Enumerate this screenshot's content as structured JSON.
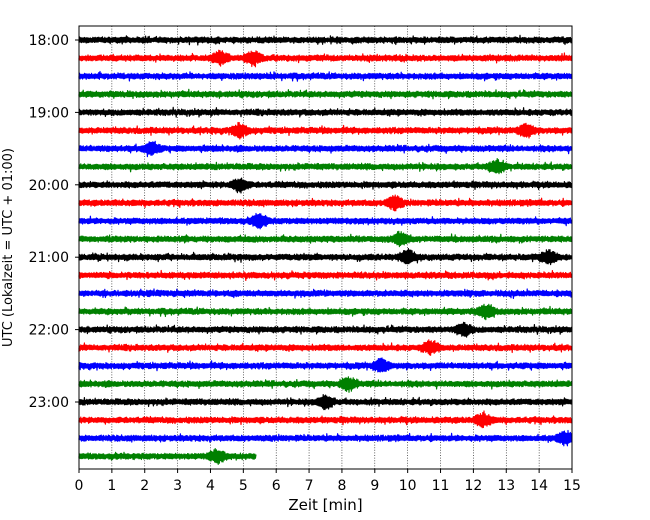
{
  "chart_data": {
    "type": "line",
    "title": "",
    "xlabel": "Zeit  [min]",
    "ylabel": "UTC (Lokalzeit = UTC + 01:00)",
    "xlim": [
      0,
      15
    ],
    "x_ticks": [
      0,
      1,
      2,
      3,
      4,
      5,
      6,
      7,
      8,
      9,
      10,
      11,
      12,
      13,
      14,
      15
    ],
    "y_ticks": [
      "18:00",
      "19:00",
      "20:00",
      "21:00",
      "22:00",
      "23:00"
    ],
    "grid": "vertical dotted lines at each minute",
    "colors": [
      "#000000",
      "#ff0000",
      "#0000ff",
      "#008000"
    ],
    "traces": [
      {
        "start": "18:00",
        "color": "#000000",
        "x_end": 15,
        "events": []
      },
      {
        "start": "18:15",
        "color": "#ff0000",
        "x_end": 15,
        "events": [
          4.3,
          5.3
        ]
      },
      {
        "start": "18:30",
        "color": "#0000ff",
        "x_end": 15,
        "events": []
      },
      {
        "start": "18:45",
        "color": "#008000",
        "x_end": 15,
        "events": []
      },
      {
        "start": "19:00",
        "color": "#000000",
        "x_end": 15,
        "events": []
      },
      {
        "start": "19:15",
        "color": "#ff0000",
        "x_end": 15,
        "events": [
          4.9,
          13.6
        ]
      },
      {
        "start": "19:30",
        "color": "#0000ff",
        "x_end": 15,
        "events": [
          2.2
        ]
      },
      {
        "start": "19:45",
        "color": "#008000",
        "x_end": 15,
        "events": [
          12.7
        ]
      },
      {
        "start": "20:00",
        "color": "#000000",
        "x_end": 15,
        "events": [
          4.9
        ]
      },
      {
        "start": "20:15",
        "color": "#ff0000",
        "x_end": 15,
        "events": [
          9.6
        ]
      },
      {
        "start": "20:30",
        "color": "#0000ff",
        "x_end": 15,
        "events": [
          5.5
        ]
      },
      {
        "start": "20:45",
        "color": "#008000",
        "x_end": 15,
        "events": [
          9.8
        ]
      },
      {
        "start": "21:00",
        "color": "#000000",
        "x_end": 15,
        "events": [
          10.0,
          14.3
        ]
      },
      {
        "start": "21:15",
        "color": "#ff0000",
        "x_end": 15,
        "events": []
      },
      {
        "start": "21:30",
        "color": "#0000ff",
        "x_end": 15,
        "events": []
      },
      {
        "start": "21:45",
        "color": "#008000",
        "x_end": 15,
        "events": [
          12.4
        ]
      },
      {
        "start": "22:00",
        "color": "#000000",
        "x_end": 15,
        "events": [
          11.7
        ]
      },
      {
        "start": "22:15",
        "color": "#ff0000",
        "x_end": 15,
        "events": [
          10.7
        ]
      },
      {
        "start": "22:30",
        "color": "#0000ff",
        "x_end": 15,
        "events": [
          9.2
        ]
      },
      {
        "start": "22:45",
        "color": "#008000",
        "x_end": 15,
        "events": [
          8.2
        ]
      },
      {
        "start": "23:00",
        "color": "#000000",
        "x_end": 15,
        "events": [
          7.5
        ]
      },
      {
        "start": "23:15",
        "color": "#ff0000",
        "x_end": 15,
        "events": [
          12.3
        ]
      },
      {
        "start": "23:30",
        "color": "#0000ff",
        "x_end": 15,
        "events": [
          14.8
        ]
      },
      {
        "start": "23:45",
        "color": "#008000",
        "x_end": 5.4,
        "events": [
          4.2
        ]
      }
    ]
  }
}
